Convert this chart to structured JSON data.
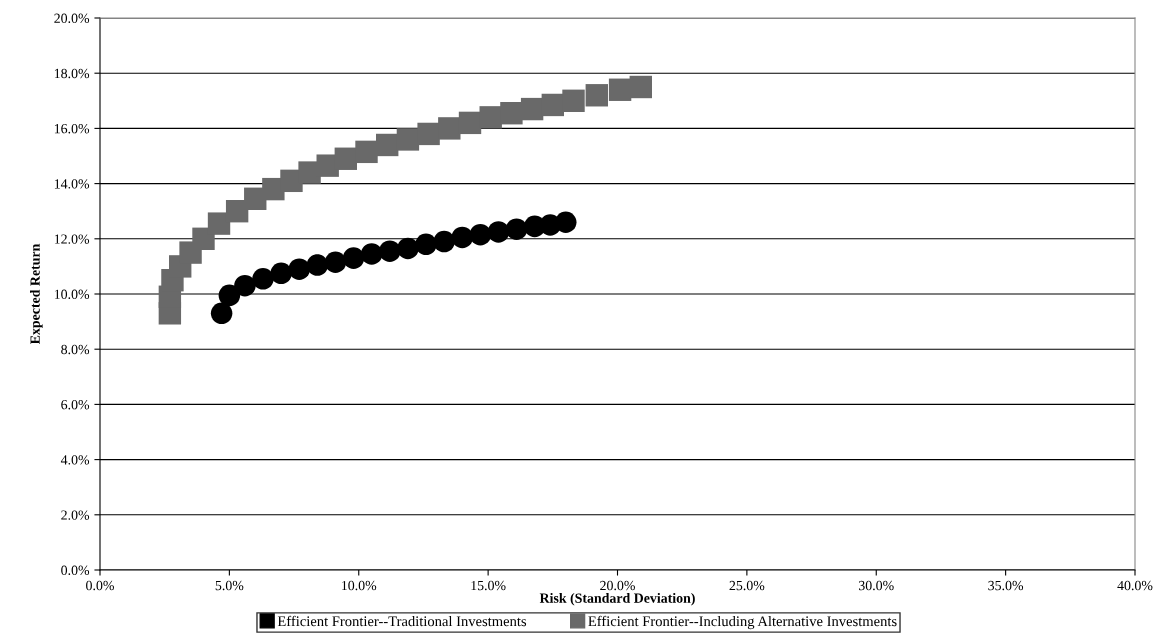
{
  "chart_data": {
    "type": "scatter",
    "xlabel": "Risk (Standard Deviation)",
    "ylabel": "Expected Return",
    "xlim": [
      0,
      40
    ],
    "ylim": [
      0,
      20
    ],
    "xticks": [
      {
        "value": 0,
        "label": "0.0%"
      },
      {
        "value": 5,
        "label": "5.0%"
      },
      {
        "value": 10,
        "label": "10.0%"
      },
      {
        "value": 15,
        "label": "15.0%"
      },
      {
        "value": 20,
        "label": "20.0%"
      },
      {
        "value": 25,
        "label": "25.0%"
      },
      {
        "value": 30,
        "label": "30.0%"
      },
      {
        "value": 35,
        "label": "35.0%"
      },
      {
        "value": 40,
        "label": "40.0%"
      }
    ],
    "yticks": [
      {
        "value": 0,
        "label": "0.0%"
      },
      {
        "value": 2,
        "label": "2.0%"
      },
      {
        "value": 4,
        "label": "4.0%"
      },
      {
        "value": 6,
        "label": "6.0%"
      },
      {
        "value": 8,
        "label": "8.0%"
      },
      {
        "value": 10,
        "label": "10.0%"
      },
      {
        "value": 12,
        "label": "12.0%"
      },
      {
        "value": 14,
        "label": "14.0%"
      },
      {
        "value": 16,
        "label": "16.0%"
      },
      {
        "value": 18,
        "label": "18.0%"
      },
      {
        "value": 20,
        "label": "20.0%"
      }
    ],
    "grid": "y",
    "legend": "bottom",
    "series": [
      {
        "name": "Efficient Frontier--Traditional Investments",
        "color": "#000000",
        "marker": "circle",
        "x": [
          4.7,
          5.0,
          5.6,
          6.3,
          7.0,
          7.7,
          8.4,
          9.1,
          9.8,
          10.5,
          11.2,
          11.9,
          12.6,
          13.3,
          14.0,
          14.7,
          15.4,
          16.1,
          16.8,
          17.4,
          18.0
        ],
        "values": [
          9.3,
          9.95,
          10.3,
          10.55,
          10.75,
          10.9,
          11.05,
          11.15,
          11.3,
          11.45,
          11.55,
          11.65,
          11.8,
          11.9,
          12.05,
          12.15,
          12.25,
          12.35,
          12.45,
          12.5,
          12.6
        ]
      },
      {
        "name": "Efficient Frontier--Including Alternative Investments",
        "color": "#696969",
        "marker": "square",
        "x": [
          2.7,
          2.7,
          2.8,
          3.1,
          3.5,
          4.0,
          4.6,
          5.3,
          6.0,
          6.7,
          7.4,
          8.1,
          8.8,
          9.5,
          10.3,
          11.1,
          11.9,
          12.7,
          13.5,
          14.3,
          15.1,
          15.9,
          16.7,
          17.5,
          18.3,
          19.2,
          20.1,
          20.9
        ],
        "values": [
          9.3,
          9.9,
          10.5,
          11.0,
          11.5,
          12.0,
          12.55,
          13.0,
          13.45,
          13.8,
          14.1,
          14.4,
          14.65,
          14.9,
          15.15,
          15.4,
          15.6,
          15.8,
          16.0,
          16.2,
          16.4,
          16.55,
          16.7,
          16.85,
          17.0,
          17.2,
          17.4,
          17.5
        ]
      }
    ]
  }
}
